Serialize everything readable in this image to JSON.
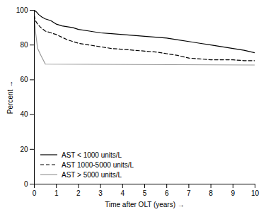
{
  "chart_data": {
    "type": "line",
    "xlabel": "Time after OLT (years)",
    "ylabel": "Percent",
    "xlim": [
      0,
      10
    ],
    "ylim": [
      0,
      100
    ],
    "xticks": [
      0,
      1,
      2,
      3,
      4,
      5,
      6,
      7,
      8,
      9,
      10
    ],
    "yticks": [
      0,
      20,
      40,
      60,
      80,
      100
    ],
    "legend": "lower left",
    "series": [
      {
        "name": "AST < 1000 units/L",
        "color": "#000000",
        "line_style": "solid",
        "x": [
          0,
          0.1,
          0.2,
          0.35,
          0.5,
          0.75,
          1.0,
          1.25,
          1.5,
          1.75,
          2.0,
          2.5,
          3.0,
          3.5,
          4.0,
          4.5,
          5.0,
          5.5,
          6.0,
          6.5,
          7.0,
          7.5,
          8.0,
          8.5,
          9.0,
          9.5,
          10.0
        ],
        "values": [
          100,
          99,
          97.5,
          96,
          95,
          94,
          92,
          91,
          90.5,
          90,
          89,
          88,
          87,
          86.5,
          86,
          85.5,
          85,
          84.5,
          84,
          83,
          82,
          81,
          80,
          79,
          78,
          77,
          75.5
        ]
      },
      {
        "name": "AST 1000-5000 units/L",
        "color": "#000000",
        "line_style": "dashed",
        "x": [
          0,
          0.05,
          0.15,
          0.3,
          0.5,
          0.75,
          1.0,
          1.25,
          1.5,
          1.75,
          2.0,
          2.5,
          3.0,
          3.5,
          4.0,
          4.5,
          5.0,
          5.5,
          6.0,
          6.5,
          7.0,
          7.5,
          8.0,
          8.5,
          9.0,
          9.5,
          10.0
        ],
        "values": [
          97,
          94,
          92,
          90,
          88,
          87,
          86,
          84.5,
          83,
          82,
          81,
          80,
          79,
          78,
          77.5,
          77,
          76.5,
          76,
          75,
          74,
          72.5,
          72,
          71.5,
          71.5,
          71.5,
          71,
          71
        ]
      },
      {
        "name": "AST > 5000 units/L",
        "color": "#999999",
        "line_style": "solid",
        "x": [
          0,
          0.05,
          0.15,
          0.3,
          0.5,
          10.0
        ],
        "values": [
          97,
          88,
          78,
          74,
          69,
          68.5
        ]
      }
    ]
  }
}
